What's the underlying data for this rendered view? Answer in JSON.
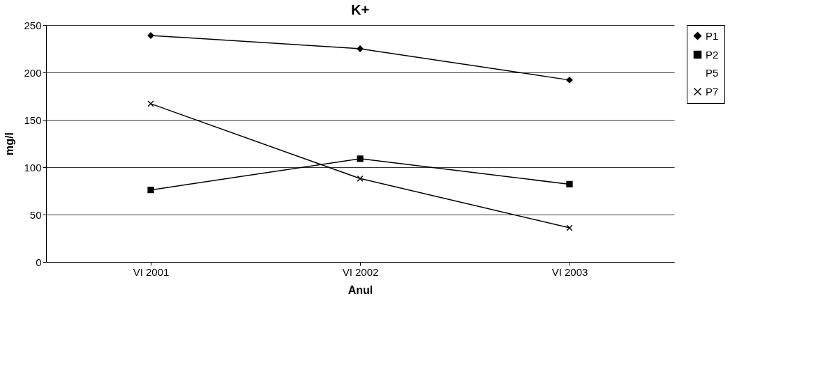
{
  "chart_data": {
    "type": "line",
    "title": "K+",
    "xlabel": "Anul",
    "ylabel": "mg/l",
    "categories": [
      "VI 2001",
      "VI 2002",
      "VI 2003"
    ],
    "ylim": [
      0,
      250
    ],
    "yticks": [
      0,
      50,
      100,
      150,
      200,
      250
    ],
    "grid": "y",
    "legend": "right",
    "series": [
      {
        "name": "P1",
        "color": "#000000",
        "marker": "diamond",
        "values": [
          239,
          225,
          192
        ]
      },
      {
        "name": "P2",
        "color": "#000000",
        "marker": "square",
        "values": [
          76,
          109,
          82
        ]
      },
      {
        "name": "P5",
        "color": "#000000",
        "marker": "none",
        "values": [
          null,
          null,
          null
        ]
      },
      {
        "name": "P7",
        "color": "#000000",
        "marker": "cross",
        "values": [
          167,
          88,
          36
        ]
      }
    ]
  }
}
